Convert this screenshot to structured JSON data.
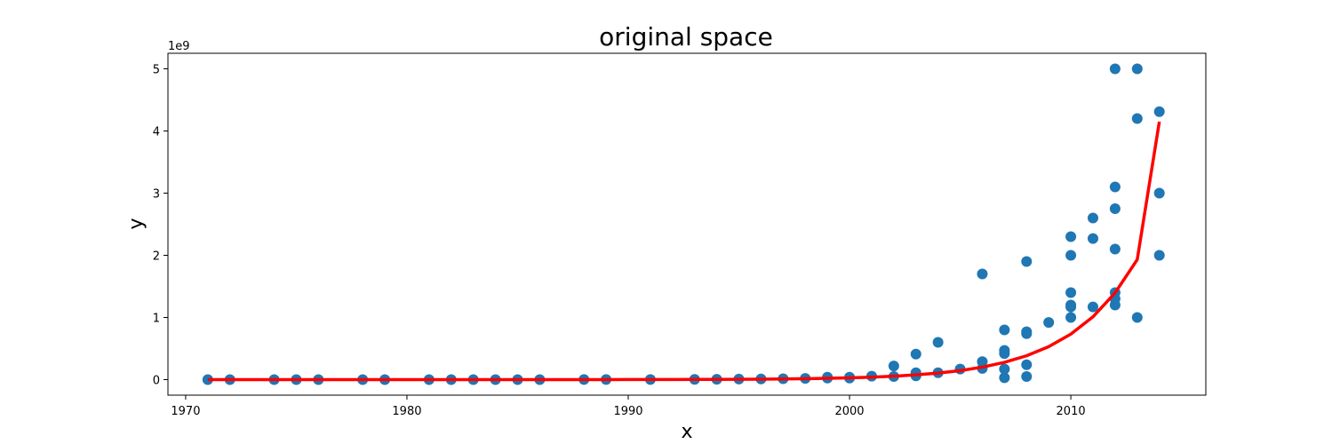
{
  "chart_data": {
    "type": "scatter",
    "title": "original space",
    "xlabel": "x",
    "ylabel": "y",
    "y_offset_label": "1e9",
    "y_scale": 1000000000,
    "xlim": [
      1969.2,
      2016.1
    ],
    "ylim": [
      -250000000,
      5250000000
    ],
    "x_ticks": [
      1970,
      1980,
      1990,
      2000,
      2010
    ],
    "y_ticks": [
      0,
      1,
      2,
      3,
      4,
      5
    ],
    "grid": false,
    "legend": "none",
    "colors": {
      "points": "#1f77b4",
      "fit_line": "#ff0000"
    },
    "series": [
      {
        "kind": "points",
        "x": [
          1971,
          1972,
          1974,
          1975,
          1976,
          1978,
          1979,
          1981,
          1982,
          1983,
          1984,
          1985,
          1986,
          1988,
          1989,
          1991,
          1993,
          1994,
          1995,
          1996,
          1997,
          1998,
          1999,
          1999,
          2000,
          2000,
          2001,
          2002,
          2002,
          2003,
          2003,
          2003,
          2004,
          2004,
          2005,
          2006,
          2006,
          2006,
          2007,
          2007,
          2007,
          2007,
          2007,
          2008,
          2008,
          2008,
          2008,
          2008,
          2009,
          2010,
          2010,
          2010,
          2010,
          2010,
          2010,
          2011,
          2011,
          2011,
          2012,
          2012,
          2012,
          2012,
          2012,
          2012,
          2012,
          2013,
          2013,
          2013,
          2014,
          2014,
          2014
        ],
        "y": [
          2300,
          3500,
          6000,
          9000,
          10000,
          29000,
          30000,
          100000,
          130000,
          200000,
          275000,
          400000,
          500000,
          1200000,
          1700000,
          2500000,
          3000000,
          5000000,
          9000000,
          10000000,
          15000000,
          20000000,
          25000000,
          40000000,
          25000000,
          40000000,
          55000000,
          50000000,
          220000000,
          60000000,
          110000000,
          410000000,
          110000000,
          600000000,
          170000000,
          180000000,
          290000000,
          1700000000,
          30000000,
          170000000,
          420000000,
          470000000,
          800000000,
          50000000,
          240000000,
          740000000,
          770000000,
          1900000000,
          920000000,
          1000000000,
          1170000000,
          1200000000,
          1400000000,
          2000000000,
          2300000000,
          1170000000,
          2270000000,
          2600000000,
          1200000000,
          1300000000,
          1400000000,
          2100000000,
          2750000000,
          3100000000,
          5000000000,
          1000000000,
          4200000000,
          5000000000,
          2000000000,
          3000000000,
          4310000000
        ]
      },
      {
        "kind": "line",
        "x": [
          1971,
          1972,
          1973,
          1974,
          1975,
          1976,
          1977,
          1978,
          1979,
          1980,
          1981,
          1982,
          1983,
          1984,
          1985,
          1986,
          1987,
          1988,
          1989,
          1990,
          1991,
          1992,
          1993,
          1994,
          1995,
          1996,
          1997,
          1998,
          1999,
          2000,
          2001,
          2002,
          2003,
          2004,
          2005,
          2006,
          2007,
          2008,
          2009,
          2010,
          2011,
          2012,
          2013,
          2014
        ],
        "y": [
          2500,
          3400,
          4700,
          6500,
          9000,
          12500,
          17000,
          24000,
          33000,
          45000,
          62000,
          86000,
          119000,
          164000,
          227000,
          313000,
          433000,
          598000,
          826000,
          1140000,
          1580000,
          2180000,
          3010000,
          4160000,
          5750000,
          7940000,
          10970000,
          15150000,
          20930000,
          28900000,
          39900000,
          55200000,
          76200000,
          105000000,
          145000000,
          201000000,
          278000000,
          384000000,
          530000000,
          732000000,
          1010000000,
          1396000000,
          1930000000,
          4150000000
        ]
      }
    ]
  }
}
